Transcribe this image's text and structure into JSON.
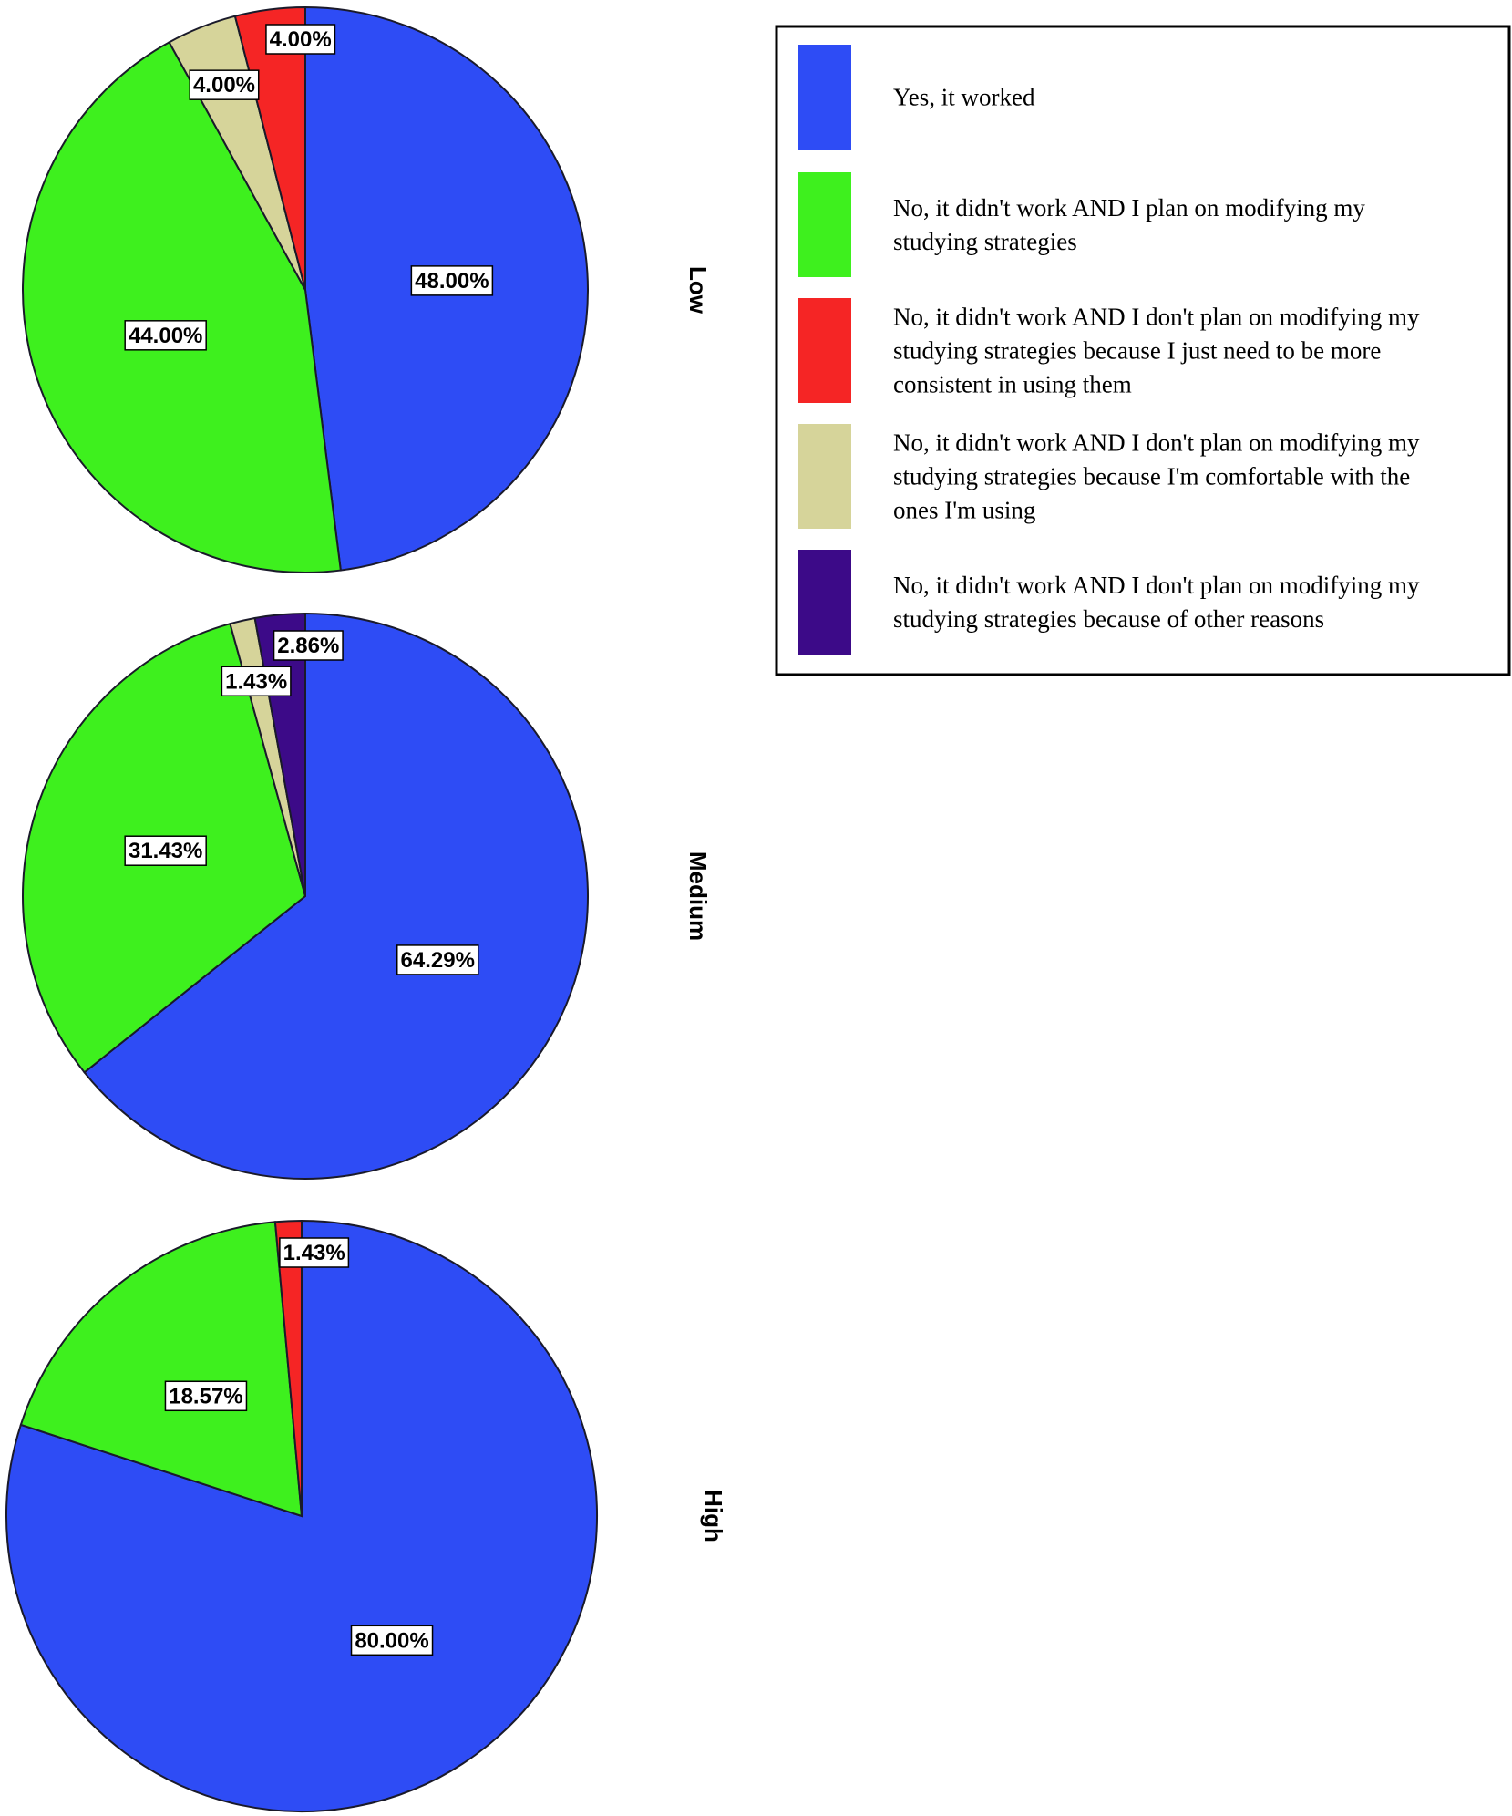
{
  "chart_data": {
    "type": "pie",
    "legend_position": "top-right",
    "legend": [
      {
        "key": "yes",
        "label_lines": [
          "Yes, it worked"
        ],
        "color": "#2e4cf5"
      },
      {
        "key": "plan_modify",
        "label_lines": [
          "No, it didn't work AND I plan on modifying my",
          "studying strategies"
        ],
        "color": "#3ef01e"
      },
      {
        "key": "consistent",
        "label_lines": [
          "No, it didn't work AND I don't plan on modifying my",
          "studying strategies because I just need to be more",
          "consistent in using them"
        ],
        "color": "#f52525"
      },
      {
        "key": "comfortable",
        "label_lines": [
          "No, it didn't work AND I don't plan on modifying my",
          "studying strategies because I'm comfortable with the",
          "ones I'm using"
        ],
        "color": "#d6d49a"
      },
      {
        "key": "other",
        "label_lines": [
          "No, it didn't work AND I don't plan on modifying my",
          "studying strategies because of other reasons"
        ],
        "color": "#3c0a88"
      }
    ],
    "pies": [
      {
        "group": "Low",
        "slices": [
          {
            "key": "yes",
            "value": 48.0,
            "label": "48.00%"
          },
          {
            "key": "plan_modify",
            "value": 44.0,
            "label": "44.00%"
          },
          {
            "key": "comfortable",
            "value": 4.0,
            "label": "4.00%"
          },
          {
            "key": "consistent",
            "value": 4.0,
            "label": "4.00%"
          }
        ]
      },
      {
        "group": "Medium",
        "slices": [
          {
            "key": "yes",
            "value": 64.29,
            "label": "64.29%"
          },
          {
            "key": "plan_modify",
            "value": 31.43,
            "label": "31.43%"
          },
          {
            "key": "comfortable",
            "value": 1.43,
            "label": "1.43%"
          },
          {
            "key": "other",
            "value": 2.86,
            "label": "2.86%"
          }
        ]
      },
      {
        "group": "High",
        "slices": [
          {
            "key": "yes",
            "value": 80.0,
            "label": "80.00%"
          },
          {
            "key": "plan_modify",
            "value": 18.57,
            "label": "18.57%"
          },
          {
            "key": "consistent",
            "value": 1.43,
            "label": "1.43%"
          }
        ]
      }
    ]
  }
}
